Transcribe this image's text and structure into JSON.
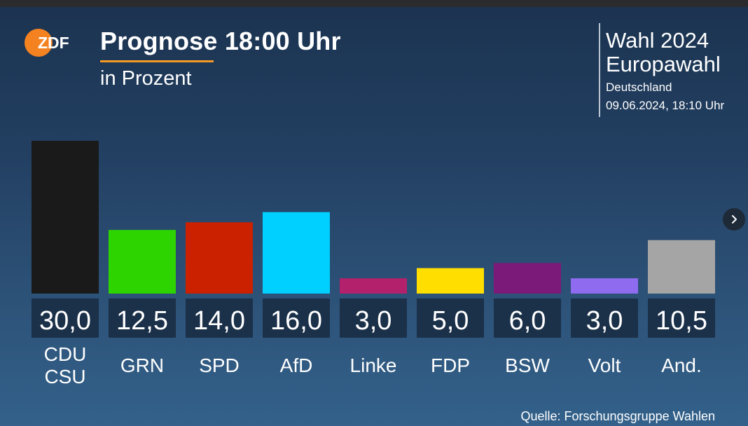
{
  "header": {
    "title": "Prognose 18:00 Uhr",
    "subtitle": "in Prozent"
  },
  "info": {
    "line1": "Wahl 2024",
    "line2": "Europawahl",
    "line3": "Deutschland",
    "line4": "09.06.2024, 18:10 Uhr"
  },
  "logo": {
    "text": "ZDF",
    "accent": "#f58220"
  },
  "source": "Quelle: Forschungsgruppe Wahlen",
  "icons": {
    "next": "chevron-right-icon"
  },
  "chart_data": {
    "type": "bar",
    "title": "Prognose 18:00 Uhr",
    "subtitle": "in Prozent",
    "xlabel": "",
    "ylabel": "",
    "ylim": [
      0,
      30
    ],
    "grid": false,
    "categories": [
      [
        "CDU",
        "CSU"
      ],
      [
        "GRN"
      ],
      [
        "SPD"
      ],
      [
        "AfD"
      ],
      [
        "Linke"
      ],
      [
        "FDP"
      ],
      [
        "BSW"
      ],
      [
        "Volt"
      ],
      [
        "And."
      ]
    ],
    "values": [
      30.0,
      12.5,
      14.0,
      16.0,
      3.0,
      5.0,
      6.0,
      3.0,
      10.5
    ],
    "value_labels": [
      "30,0",
      "12,5",
      "14,0",
      "16,0",
      "3,0",
      "5,0",
      "6,0",
      "3,0",
      "10,5"
    ],
    "colors": [
      "#1a1a1a",
      "#2ed400",
      "#cc2100",
      "#00d0ff",
      "#b3206b",
      "#ffde00",
      "#7b1a78",
      "#8f6bf0",
      "#a5a5a5"
    ]
  }
}
